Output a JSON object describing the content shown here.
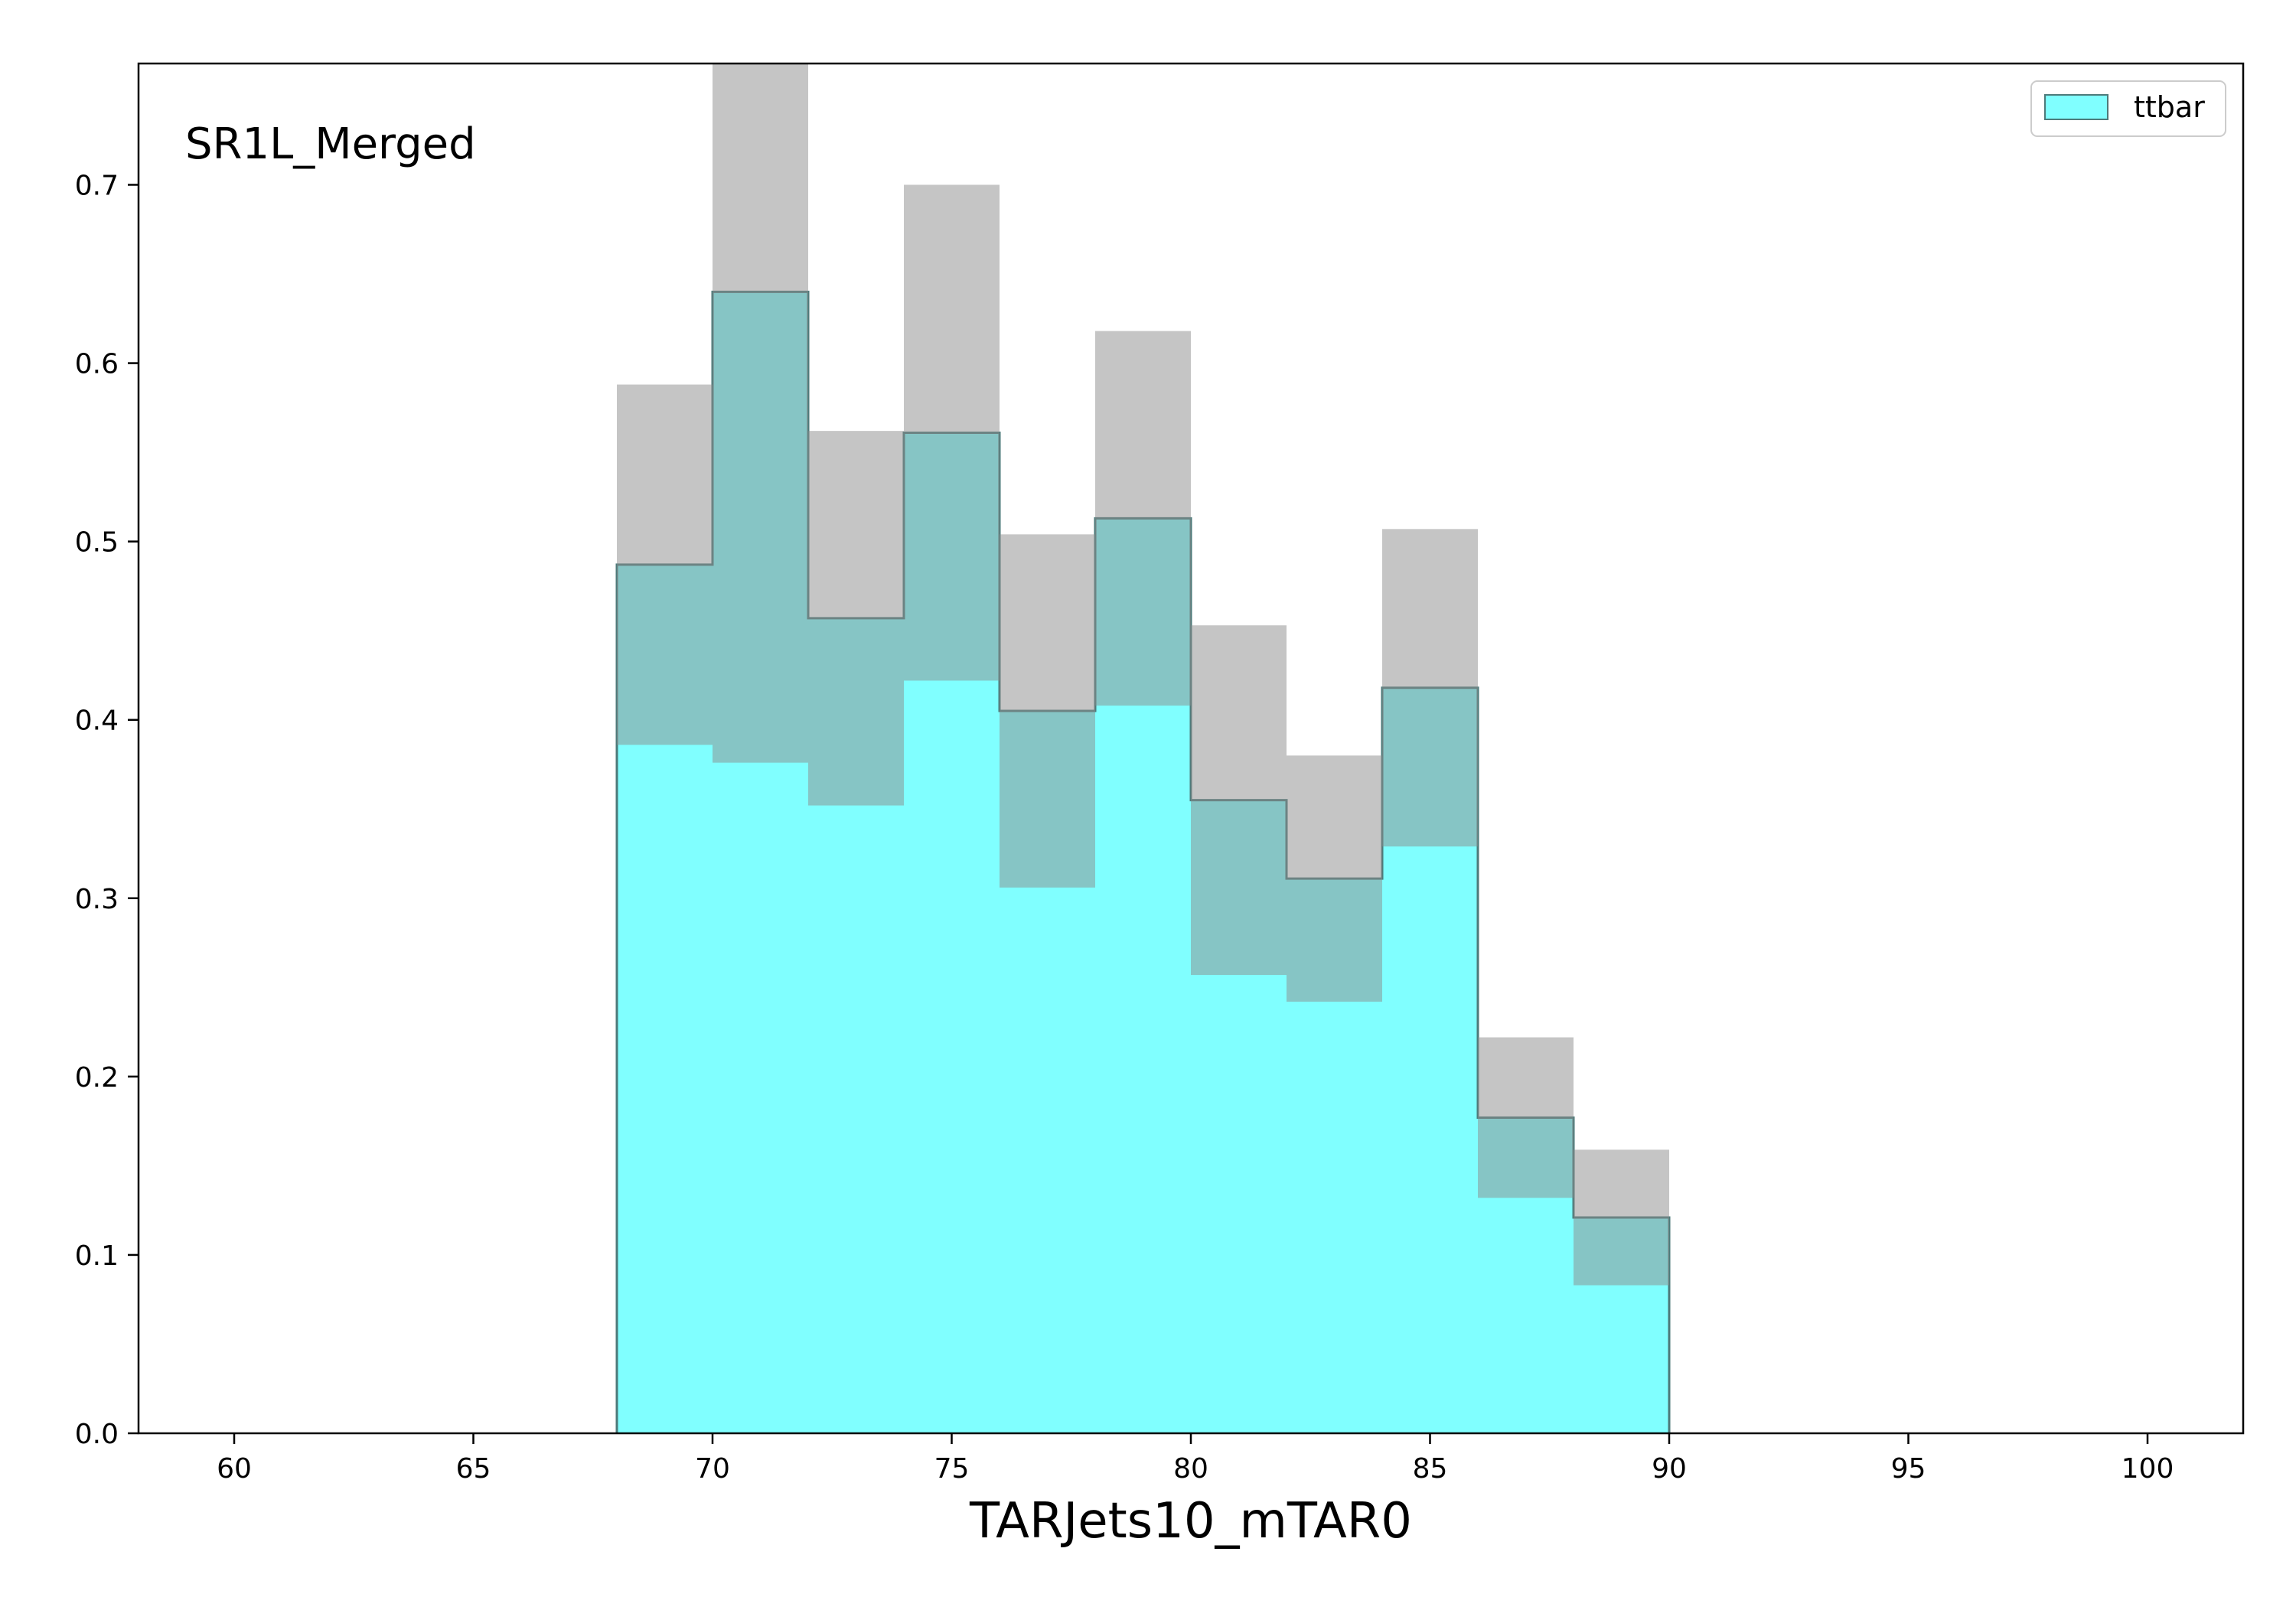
{
  "chart_data": {
    "type": "bar",
    "region_label": "SR1L_Merged",
    "xlabel": "TARJets10_mTAR0",
    "ylabel": "",
    "xlim": [
      58,
      102
    ],
    "ylim": [
      0,
      0.768
    ],
    "x_ticks": [
      60,
      65,
      70,
      75,
      80,
      85,
      90,
      95,
      100
    ],
    "x_tick_labels": [
      "60",
      "65",
      "70",
      "75",
      "80",
      "85",
      "90",
      "95",
      "100"
    ],
    "y_ticks": [
      0.0,
      0.1,
      0.2,
      0.3,
      0.4,
      0.5,
      0.6,
      0.7
    ],
    "y_tick_labels": [
      "0.0",
      "0.1",
      "0.2",
      "0.3",
      "0.4",
      "0.5",
      "0.6",
      "0.7"
    ],
    "legend_position": "top-right",
    "colors": {
      "fill": "#80ffff",
      "edge": "#4d7a7a",
      "uncertainty": "#8c8c8c",
      "uncertainty_alpha": 0.5
    },
    "series": [
      {
        "name": "ttbar",
        "bin_edges": [
          68,
          70,
          72,
          74,
          76,
          78,
          80,
          82,
          84,
          86,
          88,
          90
        ],
        "values": [
          0.487,
          0.64,
          0.457,
          0.561,
          0.405,
          0.513,
          0.355,
          0.311,
          0.418,
          0.177,
          0.121
        ],
        "errors": [
          0.101,
          0.264,
          0.105,
          0.139,
          0.099,
          0.105,
          0.098,
          0.069,
          0.089,
          0.045,
          0.038
        ]
      }
    ]
  }
}
